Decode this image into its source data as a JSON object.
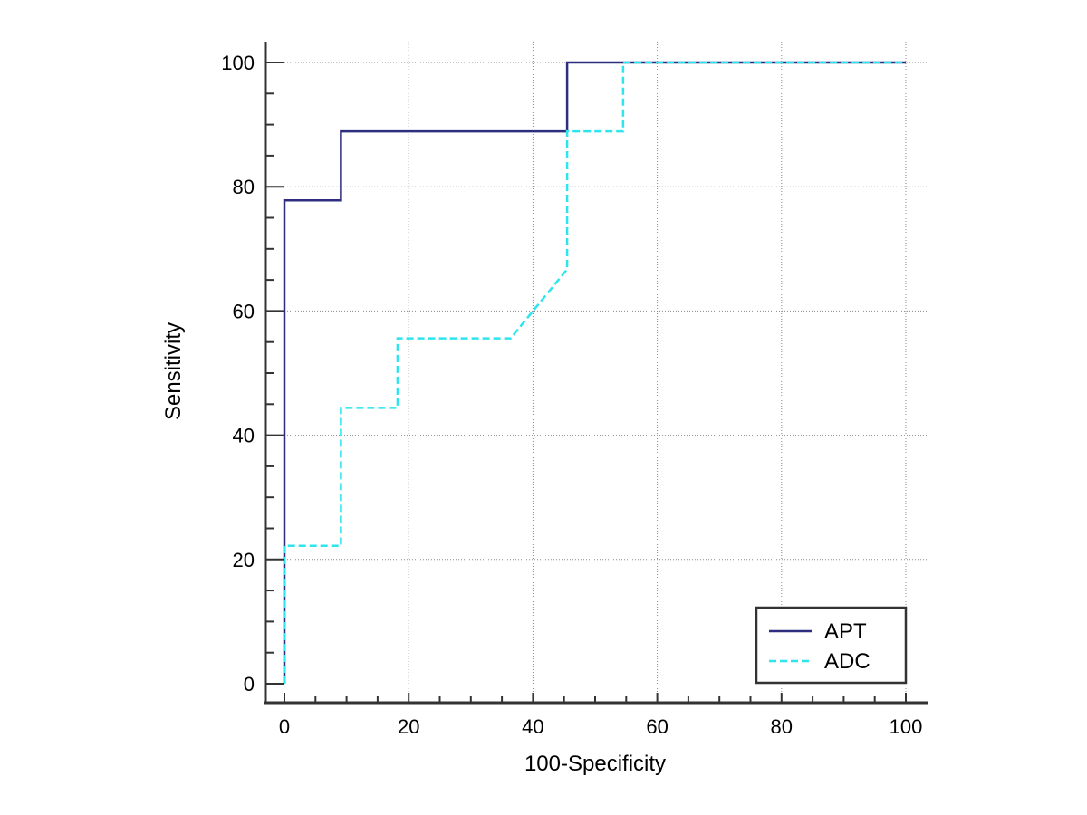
{
  "chart_data": {
    "type": "line",
    "title": "",
    "xlabel": "100-Specificity",
    "ylabel": "Sensitivity",
    "xlim": [
      0,
      100
    ],
    "ylim": [
      0,
      100
    ],
    "xticks": [
      0,
      20,
      40,
      60,
      80,
      100
    ],
    "yticks": [
      0,
      20,
      40,
      60,
      80,
      100
    ],
    "xtick_labels": [
      "0",
      "20",
      "40",
      "60",
      "80",
      "100"
    ],
    "ytick_labels": [
      "0",
      "20",
      "40",
      "60",
      "80",
      "100"
    ],
    "grid": true,
    "legend_position": "bottom-right",
    "series": [
      {
        "name": "APT",
        "color": "#2e2e80",
        "style": "solid",
        "x": [
          0,
          0,
          9.1,
          9.1,
          45.5,
          45.5,
          100
        ],
        "y": [
          0,
          77.8,
          77.8,
          88.9,
          88.9,
          100,
          100
        ]
      },
      {
        "name": "ADC",
        "color": "#2ee5ee",
        "style": "dashed",
        "x": [
          0,
          0,
          9.1,
          9.1,
          18.2,
          18.2,
          36.4,
          45.5,
          45.5,
          54.5,
          54.5,
          100
        ],
        "y": [
          0,
          22.2,
          22.2,
          44.4,
          44.4,
          55.6,
          55.6,
          66.7,
          88.9,
          88.9,
          100,
          100
        ]
      }
    ]
  }
}
